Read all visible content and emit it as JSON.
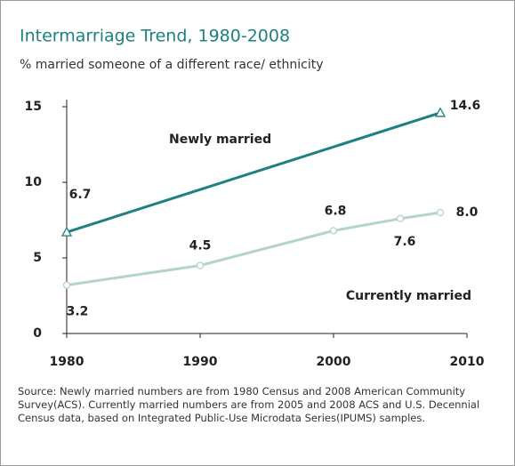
{
  "chart_data": {
    "type": "line",
    "title": "Intermarriage Trend, 1980-2008",
    "subtitle": "% married someone of a different race/ ethnicity",
    "series": [
      {
        "name": "Newly married",
        "color": "#1e8080",
        "marker": "triangle",
        "x": [
          1980,
          2008
        ],
        "values": [
          6.7,
          14.6
        ]
      },
      {
        "name": "Currently married",
        "color": "#b4d5c2",
        "marker": "circle",
        "x": [
          1980,
          1990,
          2000,
          2005,
          2008
        ],
        "values": [
          3.2,
          4.5,
          6.8,
          7.6,
          8.0
        ],
        "value_labels": [
          "3.2",
          "4.5",
          "6.8",
          "7.6",
          "8.0"
        ]
      }
    ],
    "xlim": [
      1980,
      2010
    ],
    "xticks": [
      1980,
      1990,
      2000,
      2010
    ],
    "ylim": [
      0,
      15
    ],
    "yticks": [
      0,
      5,
      10,
      15
    ],
    "grid": false,
    "note": "Source: Newly married numbers are from 1980 Census and 2008 American Community Survey(ACS). Currently married numbers are from 2005 and 2008 ACS and U.S. Decennial Census data, based on Integrated Public-Use Microdata Series(IPUMS) samples."
  }
}
